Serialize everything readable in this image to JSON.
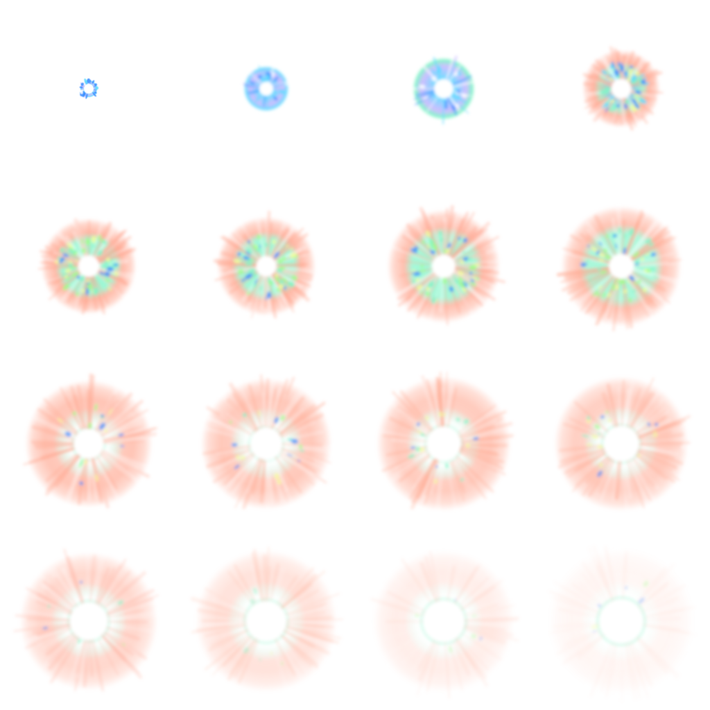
{
  "sprite_sheet": {
    "columns": 4,
    "rows": 4,
    "frame_count": 16,
    "background": "#ffffff",
    "palette": {
      "core_blue": "#3a8dff",
      "cyan": "#5fdcff",
      "mint": "#7ff5c8",
      "lime": "#9cff8a",
      "yellow": "#f4ff9a",
      "salmon": "#ffa48c",
      "lavender": "#c9b8ff"
    },
    "frames": [
      {
        "index": 1,
        "radius": 0.05,
        "hole": 0.55,
        "stage": "spark",
        "fade": 1.0
      },
      {
        "index": 2,
        "radius": 0.13,
        "hole": 0.3,
        "stage": "blue-burst",
        "fade": 1.0
      },
      {
        "index": 3,
        "radius": 0.18,
        "hole": 0.3,
        "stage": "blue-ring",
        "fade": 1.0
      },
      {
        "index": 4,
        "radius": 0.22,
        "hole": 0.25,
        "stage": "ignition",
        "fade": 1.0
      },
      {
        "index": 5,
        "radius": 0.27,
        "hole": 0.22,
        "stage": "fire",
        "fade": 1.0
      },
      {
        "index": 6,
        "radius": 0.28,
        "hole": 0.2,
        "stage": "fire",
        "fade": 0.97
      },
      {
        "index": 7,
        "radius": 0.32,
        "hole": 0.2,
        "stage": "fire",
        "fade": 0.93
      },
      {
        "index": 8,
        "radius": 0.34,
        "hole": 0.2,
        "stage": "fire",
        "fade": 0.88
      },
      {
        "index": 9,
        "radius": 0.36,
        "hole": 0.23,
        "stage": "smoke",
        "fade": 0.85
      },
      {
        "index": 10,
        "radius": 0.37,
        "hole": 0.24,
        "stage": "smoke",
        "fade": 0.8
      },
      {
        "index": 11,
        "radius": 0.38,
        "hole": 0.25,
        "stage": "smoke",
        "fade": 0.76
      },
      {
        "index": 12,
        "radius": 0.38,
        "hole": 0.26,
        "stage": "smoke",
        "fade": 0.7
      },
      {
        "index": 13,
        "radius": 0.39,
        "hole": 0.27,
        "stage": "dissipate",
        "fade": 0.58
      },
      {
        "index": 14,
        "radius": 0.4,
        "hole": 0.28,
        "stage": "dissipate",
        "fade": 0.42
      },
      {
        "index": 15,
        "radius": 0.4,
        "hole": 0.29,
        "stage": "dissipate",
        "fade": 0.26
      },
      {
        "index": 16,
        "radius": 0.41,
        "hole": 0.3,
        "stage": "dissipate",
        "fade": 0.13
      }
    ]
  }
}
